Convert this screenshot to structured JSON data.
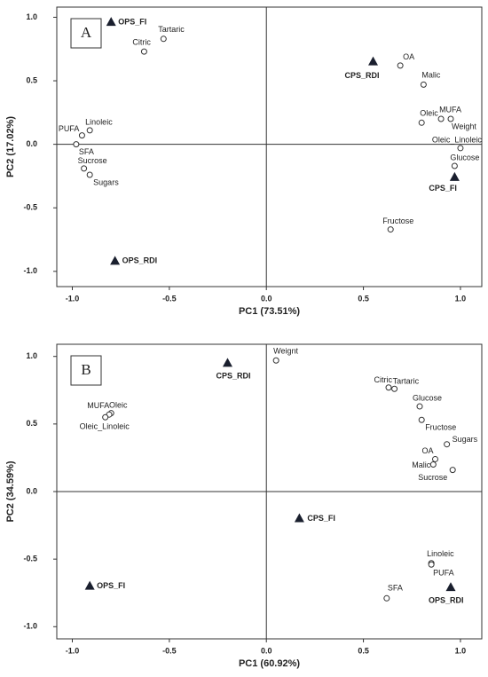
{
  "chart_data": [
    {
      "type": "scatter",
      "panel_label": "A",
      "xlabel": "PC1 (73.51%)",
      "ylabel": "PC2 (17.02%)",
      "xlim": [
        -1.08,
        1.11
      ],
      "ylim": [
        -1.12,
        1.08
      ],
      "xticks": [
        {
          "value": -1,
          "label": "-1.0"
        },
        {
          "value": -0.5,
          "label": "-0.5"
        },
        {
          "value": 0,
          "label": "0.0"
        },
        0.5,
        {
          "value": 1,
          "label": "1.0"
        }
      ],
      "yticks": [
        {
          "value": -1,
          "label": "-1.0"
        },
        {
          "value": -0.5,
          "label": "-0.5"
        },
        {
          "value": 0,
          "label": "0.0"
        },
        0.5,
        {
          "value": 1,
          "label": "1.0"
        }
      ],
      "variables": {
        "labels": [
          "Tartaric",
          "Citric",
          "OA",
          "Malic",
          "Oleic",
          "MUFA",
          "Weight",
          "Oleic_Linoleic",
          "Glucose",
          "Fructose",
          "Linoleic",
          "PUFA",
          "SFA",
          "Sucrose",
          "Sugars"
        ],
        "x": [
          -0.53,
          -0.63,
          0.69,
          0.81,
          0.8,
          0.9,
          0.95,
          1.0,
          0.97,
          0.64,
          -0.91,
          -0.95,
          -0.98,
          -0.94,
          -0.91
        ],
        "y": [
          0.83,
          0.73,
          0.62,
          0.47,
          0.17,
          0.2,
          0.2,
          -0.03,
          -0.17,
          -0.67,
          0.11,
          0.07,
          0.0,
          -0.19,
          -0.24
        ]
      },
      "samples": {
        "labels": [
          "OPS_FI",
          "CPS_RDI",
          "CPS_FI",
          "OPS_RDI"
        ],
        "x": [
          -0.8,
          0.55,
          0.97,
          -0.78
        ],
        "y": [
          0.96,
          0.65,
          -0.26,
          -0.92
        ]
      }
    },
    {
      "type": "scatter",
      "panel_label": "B",
      "xlabel": "PC1 (60.92%)",
      "ylabel": "PC2 (34.59%)",
      "xlim": [
        -1.08,
        1.11
      ],
      "ylim": [
        -1.09,
        1.09
      ],
      "xticks": [
        {
          "value": -1,
          "label": "-1.0"
        },
        {
          "value": -0.5,
          "label": "-0.5"
        },
        {
          "value": 0,
          "label": "0.0"
        },
        0.5,
        {
          "value": 1,
          "label": "1.0"
        }
      ],
      "yticks": [
        {
          "value": -1,
          "label": "-1.0"
        },
        {
          "value": -0.5,
          "label": "-0.5"
        },
        {
          "value": 0,
          "label": "0.0"
        },
        0.5,
        {
          "value": 1,
          "label": "1.0"
        }
      ],
      "variables": {
        "labels": [
          "Weignt",
          "Citric",
          "Tartaric",
          "Glucose",
          "Fructose",
          "Sugars",
          "OA",
          "Malic",
          "Sucrose",
          "MUFA",
          "Oleic",
          "Oleic_Linoleic",
          "Linoleic",
          "PUFA",
          "SFA"
        ],
        "x": [
          0.05,
          0.63,
          0.66,
          0.79,
          0.8,
          0.93,
          0.87,
          0.86,
          0.96,
          -0.8,
          -0.81,
          -0.83,
          0.85,
          0.85,
          0.62
        ],
        "y": [
          0.97,
          0.77,
          0.76,
          0.63,
          0.53,
          0.35,
          0.24,
          0.2,
          0.16,
          0.58,
          0.57,
          0.55,
          -0.53,
          -0.54,
          -0.79
        ]
      },
      "samples": {
        "labels": [
          "CPS_RDI",
          "CPS_FI",
          "OPS_FI",
          "OPS_RDI"
        ],
        "x": [
          -0.2,
          0.17,
          -0.91,
          0.95
        ],
        "y": [
          0.95,
          -0.2,
          -0.7,
          -0.71
        ]
      }
    }
  ]
}
